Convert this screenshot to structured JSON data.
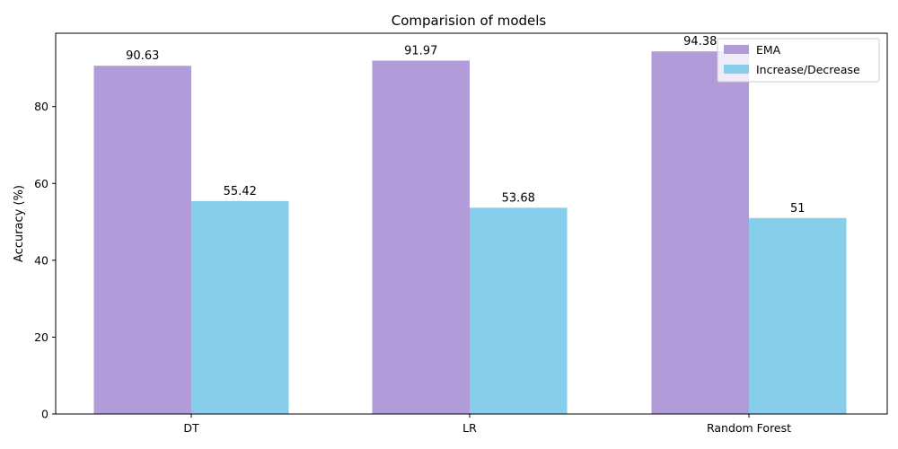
{
  "chart_data": {
    "type": "bar",
    "title": "Comparision of models",
    "xlabel": "",
    "ylabel": "Accuracy (%)",
    "categories": [
      "DT",
      "LR",
      "Random Forest"
    ],
    "series": [
      {
        "name": "EMA",
        "values": [
          90.63,
          91.97,
          94.38
        ],
        "labels": [
          "90.63",
          "91.97",
          "94.38"
        ],
        "color": "#b19cd9"
      },
      {
        "name": "Increase/Decrease",
        "values": [
          55.42,
          53.68,
          51
        ],
        "labels": [
          "55.42",
          "53.68",
          "51"
        ],
        "color": "#87ceeb"
      }
    ],
    "ylim": [
      0,
      99.1
    ],
    "yticks": [
      0,
      20,
      40,
      60,
      80
    ],
    "grid": false,
    "legend_position": "top-right"
  }
}
